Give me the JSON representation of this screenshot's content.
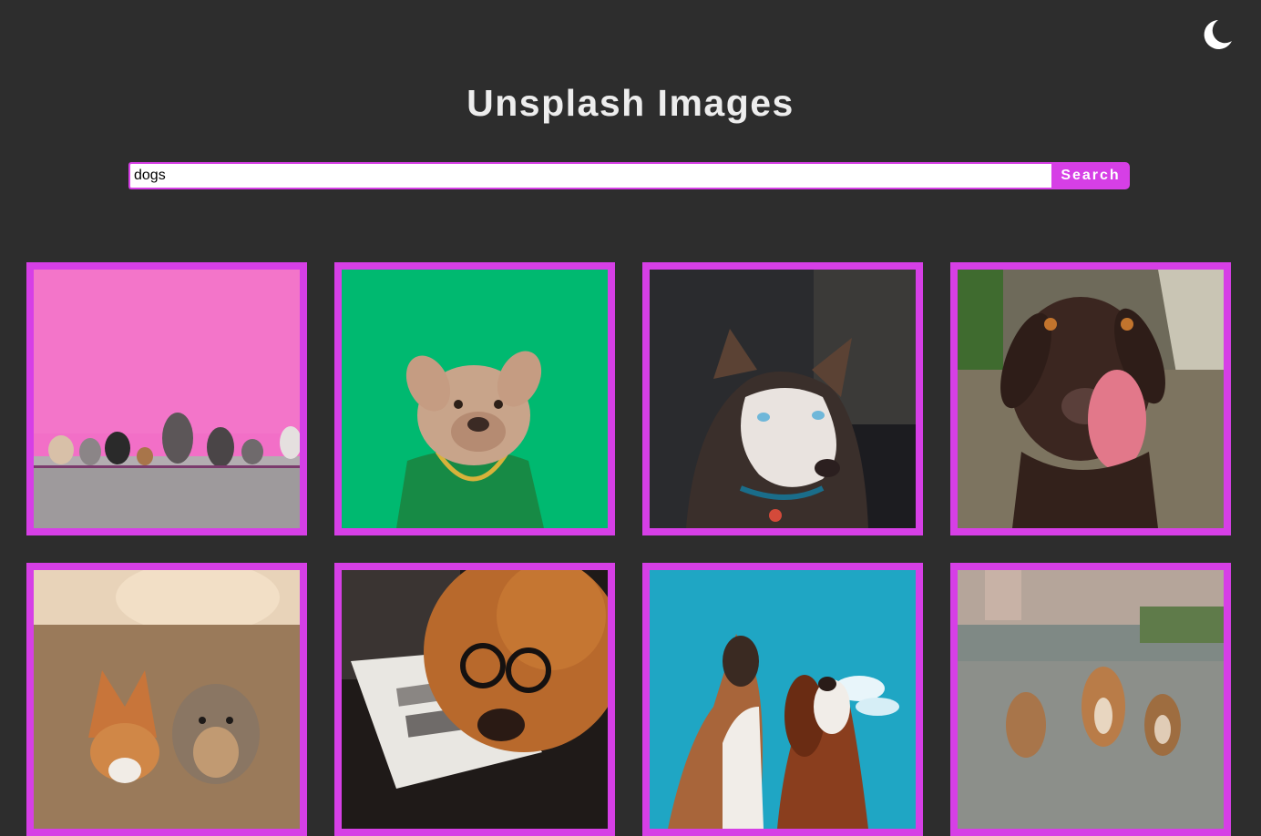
{
  "page": {
    "title": "Unsplash Images",
    "background": "#2d2d2d",
    "accent": "#d63fe6"
  },
  "theme_toggle": {
    "icon": "moon-icon"
  },
  "search": {
    "value": "dogs",
    "placeholder": "",
    "button_label": "Search"
  },
  "gallery": {
    "items": [
      {
        "subject": "dogs sitting in a row in front of pink wall"
      },
      {
        "subject": "french bulldog in green jacket and gold chain on green background"
      },
      {
        "subject": "siberian husky portrait"
      },
      {
        "subject": "chocolate labrador licking its nose"
      },
      {
        "subject": "corgi and yorkshire terrier outdoors"
      },
      {
        "subject": "golden retriever wearing glasses reading a newspaper"
      },
      {
        "subject": "two dogs barking at blue sky"
      },
      {
        "subject": "three puppies on a road"
      }
    ]
  }
}
